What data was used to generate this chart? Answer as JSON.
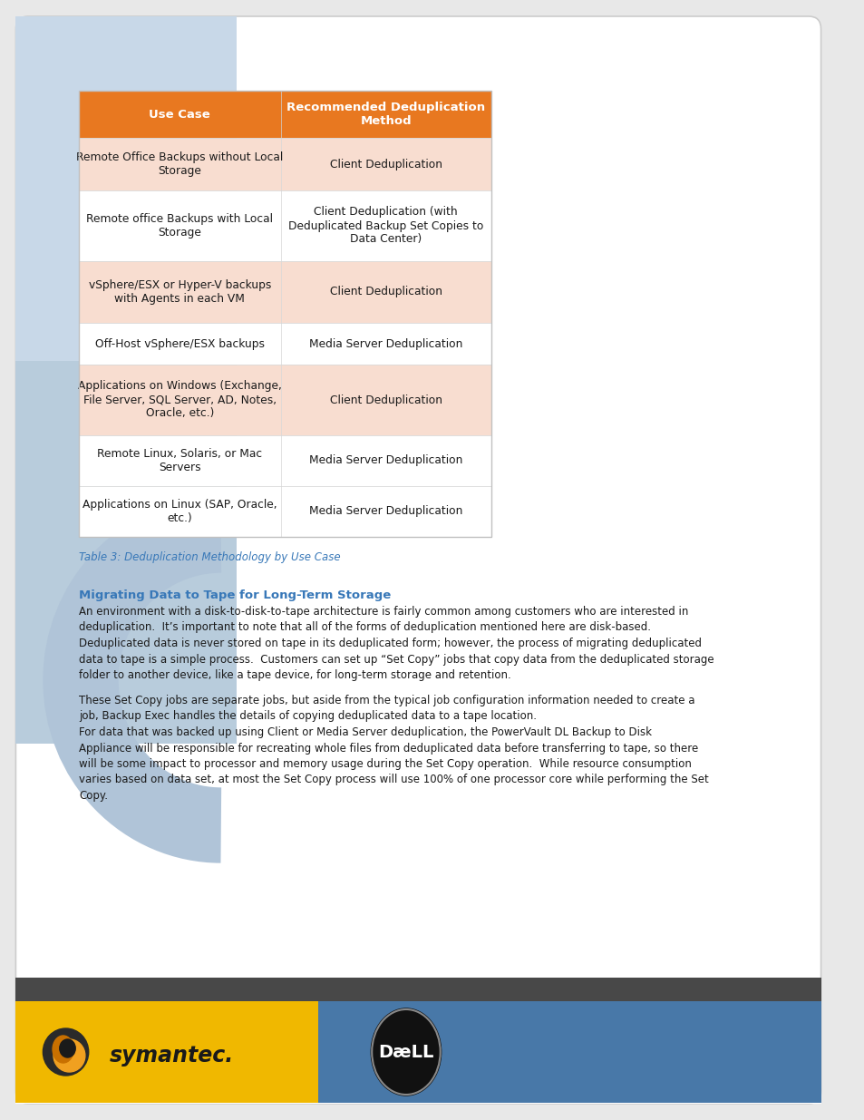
{
  "page_bg": "#e8e8e8",
  "card_bg": "#ffffff",
  "left_sidebar_color": "#b0c4d8",
  "left_sidebar_color2": "#c8d8e8",
  "header_orange": "#e87820",
  "row_light": "#f8ddd0",
  "row_white": "#ffffff",
  "dark_bar": "#484848",
  "symantec_yellow": "#f0b800",
  "dell_blue": "#4878a8",
  "table_caption_color": "#3878b8",
  "heading_color": "#3878b8",
  "body_text_color": "#1a1a1a",
  "table_headers": [
    "Use Case",
    "Recommended Deduplication\nMethod"
  ],
  "table_rows": [
    [
      "Remote Office Backups without Local\nStorage",
      "Client Deduplication"
    ],
    [
      "Remote office Backups with Local\nStorage",
      "Client Deduplication (with\nDeduplicated Backup Set Copies to\nData Center)"
    ],
    [
      "vSphere/ESX or Hyper-V backups\nwith Agents in each VM",
      "Client Deduplication"
    ],
    [
      "Off-Host vSphere/ESX backups",
      "Media Server Deduplication"
    ],
    [
      "Applications on Windows (Exchange,\nFile Server, SQL Server, AD, Notes,\nOracle, etc.)",
      "Client Deduplication"
    ],
    [
      "Remote Linux, Solaris, or Mac\nServers",
      "Media Server Deduplication"
    ],
    [
      "Applications on Linux (SAP, Oracle,\netc.)",
      "Media Server Deduplication"
    ]
  ],
  "row_colors": [
    "#f8ddd0",
    "#ffffff",
    "#f8ddd0",
    "#ffffff",
    "#f8ddd0",
    "#ffffff",
    "#ffffff"
  ],
  "table_caption": "Table 3: Deduplication Methodology by Use Case",
  "section_heading": "Migrating Data to Tape for Long-Term Storage",
  "para1": "An environment with a disk-to-disk-to-tape architecture is fairly common among customers who are interested in\ndeduplication.  It’s important to note that all of the forms of deduplication mentioned here are disk-based.\nDeduplicated data is never stored on tape in its deduplicated form; however, the process of migrating deduplicated\ndata to tape is a simple process.  Customers can set up “Set Copy” jobs that copy data from the deduplicated storage\nfolder to another device, like a tape device, for long-term storage and retention.",
  "para2": "These Set Copy jobs are separate jobs, but aside from the typical job configuration information needed to create a\njob, Backup Exec handles the details of copying deduplicated data to a tape location.\nFor data that was backed up using Client or Media Server deduplication, the PowerVault DL Backup to Disk\nAppliance will be responsible for recreating whole files from deduplicated data before transferring to tape, so there\nwill be some impact to processor and memory usage during the Set Copy operation.  While resource consumption\nvaries based on data set, at most the Set Copy process will use 100% of one processor core while performing the Set\nCopy."
}
